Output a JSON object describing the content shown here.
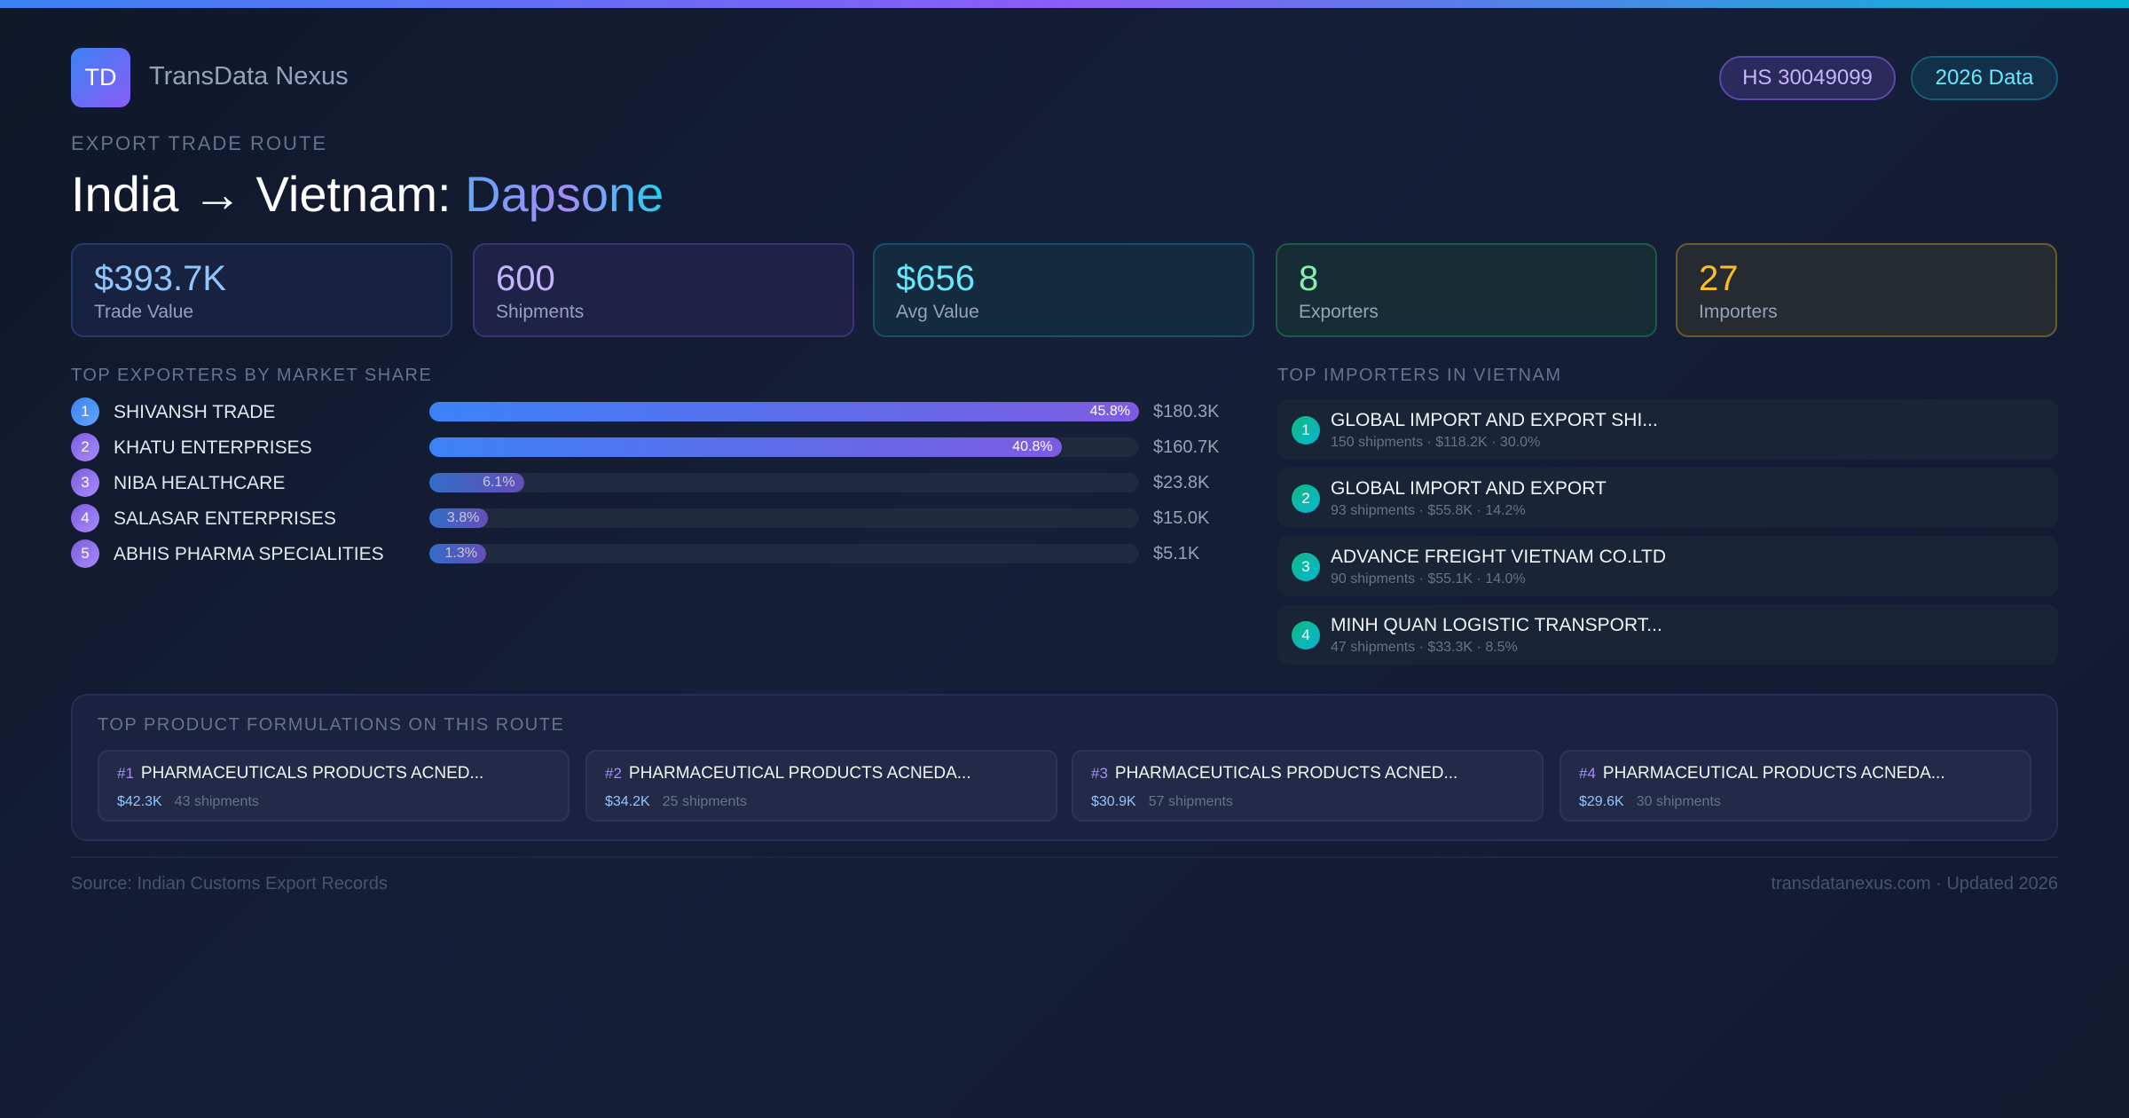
{
  "brand": {
    "logo": "TD",
    "name": "TransData Nexus"
  },
  "badges": {
    "hs": "HS 30049099",
    "year": "2026 Data"
  },
  "header": {
    "kicker": "EXPORT TRADE ROUTE",
    "route": "India → Vietnam:",
    "product": "Dapsone"
  },
  "stats": [
    {
      "value": "$393.7K",
      "label": "Trade Value",
      "color": "#93c5fd"
    },
    {
      "value": "600",
      "label": "Shipments",
      "color": "#c4b5fd"
    },
    {
      "value": "$656",
      "label": "Avg Value",
      "color": "#67e8f9"
    },
    {
      "value": "8",
      "label": "Exporters",
      "color": "#86efac"
    },
    {
      "value": "27",
      "label": "Importers",
      "color": "#fbbf24"
    }
  ],
  "exporters": {
    "title": "TOP EXPORTERS BY MARKET SHARE",
    "items": [
      {
        "rank": "1",
        "name": "SHIVANSH TRADE",
        "share": 45.8,
        "share_label": "45.8%",
        "value": "$180.3K"
      },
      {
        "rank": "2",
        "name": "KHATU ENTERPRISES",
        "share": 40.8,
        "share_label": "40.8%",
        "value": "$160.7K"
      },
      {
        "rank": "3",
        "name": "NIBA HEALTHCARE",
        "share": 6.1,
        "share_label": "6.1%",
        "value": "$23.8K"
      },
      {
        "rank": "4",
        "name": "SALASAR ENTERPRISES",
        "share": 3.8,
        "share_label": "3.8%",
        "value": "$15.0K"
      },
      {
        "rank": "5",
        "name": "ABHIS PHARMA SPECIALITIES",
        "share": 1.3,
        "share_label": "1.3%",
        "value": "$5.1K"
      }
    ]
  },
  "importers": {
    "title": "TOP IMPORTERS IN VIETNAM",
    "items": [
      {
        "rank": "1",
        "name": "GLOBAL IMPORT AND EXPORT SHI...",
        "details": "150 shipments · $118.2K · 30.0%"
      },
      {
        "rank": "2",
        "name": "GLOBAL IMPORT AND EXPORT",
        "details": "93 shipments · $55.8K · 14.2%"
      },
      {
        "rank": "3",
        "name": "ADVANCE FREIGHT VIETNAM CO.LTD",
        "details": "90 shipments · $55.1K · 14.0%"
      },
      {
        "rank": "4",
        "name": "MINH QUAN LOGISTIC TRANSPORT...",
        "details": "47 shipments · $33.3K · 8.5%"
      }
    ]
  },
  "formulations": {
    "title": "TOP PRODUCT FORMULATIONS ON THIS ROUTE",
    "items": [
      {
        "rank": "#1",
        "name": "PHARMACEUTICALS PRODUCTS ACNED...",
        "value": "$42.3K",
        "shipments": "43 shipments"
      },
      {
        "rank": "#2",
        "name": "PHARMACEUTICAL PRODUCTS ACNEDA...",
        "value": "$34.2K",
        "shipments": "25 shipments"
      },
      {
        "rank": "#3",
        "name": "PHARMACEUTICALS PRODUCTS ACNED...",
        "value": "$30.9K",
        "shipments": "57 shipments"
      },
      {
        "rank": "#4",
        "name": "PHARMACEUTICAL PRODUCTS ACNEDA...",
        "value": "$29.6K",
        "shipments": "30 shipments"
      }
    ]
  },
  "footer": {
    "source": "Source: Indian Customs Export Records",
    "site": "transdatanexus.com · Updated 2026"
  }
}
